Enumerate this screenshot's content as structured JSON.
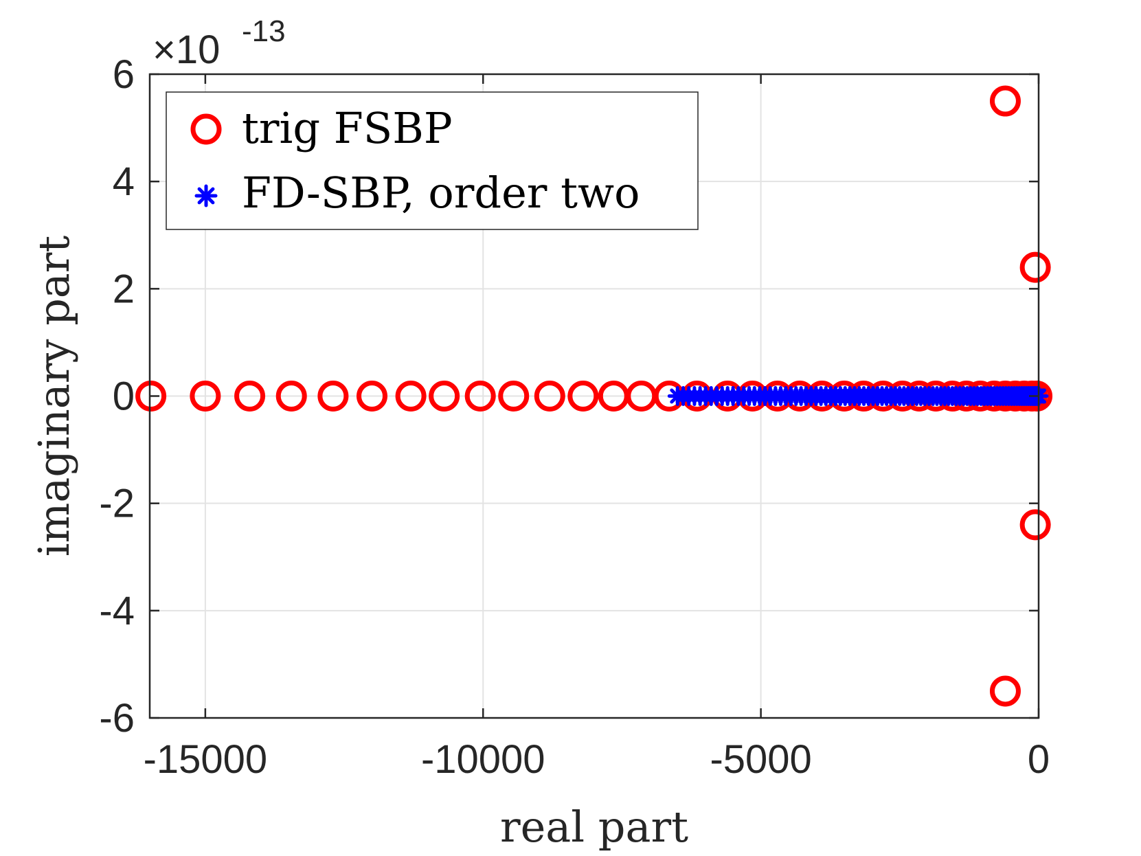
{
  "chart_data": {
    "type": "scatter",
    "xlabel": "real part",
    "ylabel": "imaginary part",
    "xlim": [
      -16000,
      0
    ],
    "ylim": [
      -6,
      6
    ],
    "y_scale_factor": "×10",
    "y_scale_exponent": "-13",
    "grid": true,
    "legend_placement": "top-left",
    "x_ticks": [
      -15000,
      -10000,
      -5000,
      0
    ],
    "x_tick_labels": [
      "-15000",
      "-10000",
      "-5000",
      "0"
    ],
    "y_ticks": [
      -6,
      -4,
      -2,
      0,
      2,
      4,
      6
    ],
    "y_tick_labels": [
      "-6",
      "-4",
      "-2",
      "0",
      "2",
      "4",
      "6"
    ],
    "series": [
      {
        "name": "trig FSBP",
        "marker": "circle-open",
        "color": "#ff0000",
        "points": [
          [
            -15980,
            0
          ],
          [
            -15000,
            0
          ],
          [
            -14200,
            0
          ],
          [
            -13450,
            0
          ],
          [
            -12700,
            0
          ],
          [
            -12000,
            0
          ],
          [
            -11300,
            0
          ],
          [
            -10700,
            0
          ],
          [
            -10050,
            0
          ],
          [
            -9450,
            0
          ],
          [
            -8800,
            0
          ],
          [
            -8200,
            0
          ],
          [
            -7650,
            0
          ],
          [
            -7150,
            0
          ],
          [
            -6650,
            0
          ],
          [
            -6150,
            0
          ],
          [
            -5600,
            0
          ],
          [
            -5150,
            0
          ],
          [
            -4700,
            0
          ],
          [
            -4300,
            0
          ],
          [
            -3900,
            0
          ],
          [
            -3500,
            0
          ],
          [
            -3150,
            0
          ],
          [
            -2800,
            0
          ],
          [
            -2450,
            0
          ],
          [
            -2150,
            0
          ],
          [
            -1850,
            0
          ],
          [
            -1550,
            0
          ],
          [
            -1300,
            0
          ],
          [
            -1050,
            0
          ],
          [
            -800,
            0
          ],
          [
            -600,
            0
          ],
          [
            -420,
            0
          ],
          [
            -260,
            0
          ],
          [
            -120,
            0
          ],
          [
            -30,
            0
          ],
          [
            -600,
            5.5
          ],
          [
            -600,
            -5.5
          ],
          [
            -60,
            2.4
          ],
          [
            -60,
            -2.4
          ]
        ]
      },
      {
        "name": "FD-SBP, order two",
        "marker": "asterisk",
        "color": "#0000ff",
        "x_range": [
          -6500,
          0
        ],
        "count": 90,
        "y": 0
      }
    ]
  }
}
